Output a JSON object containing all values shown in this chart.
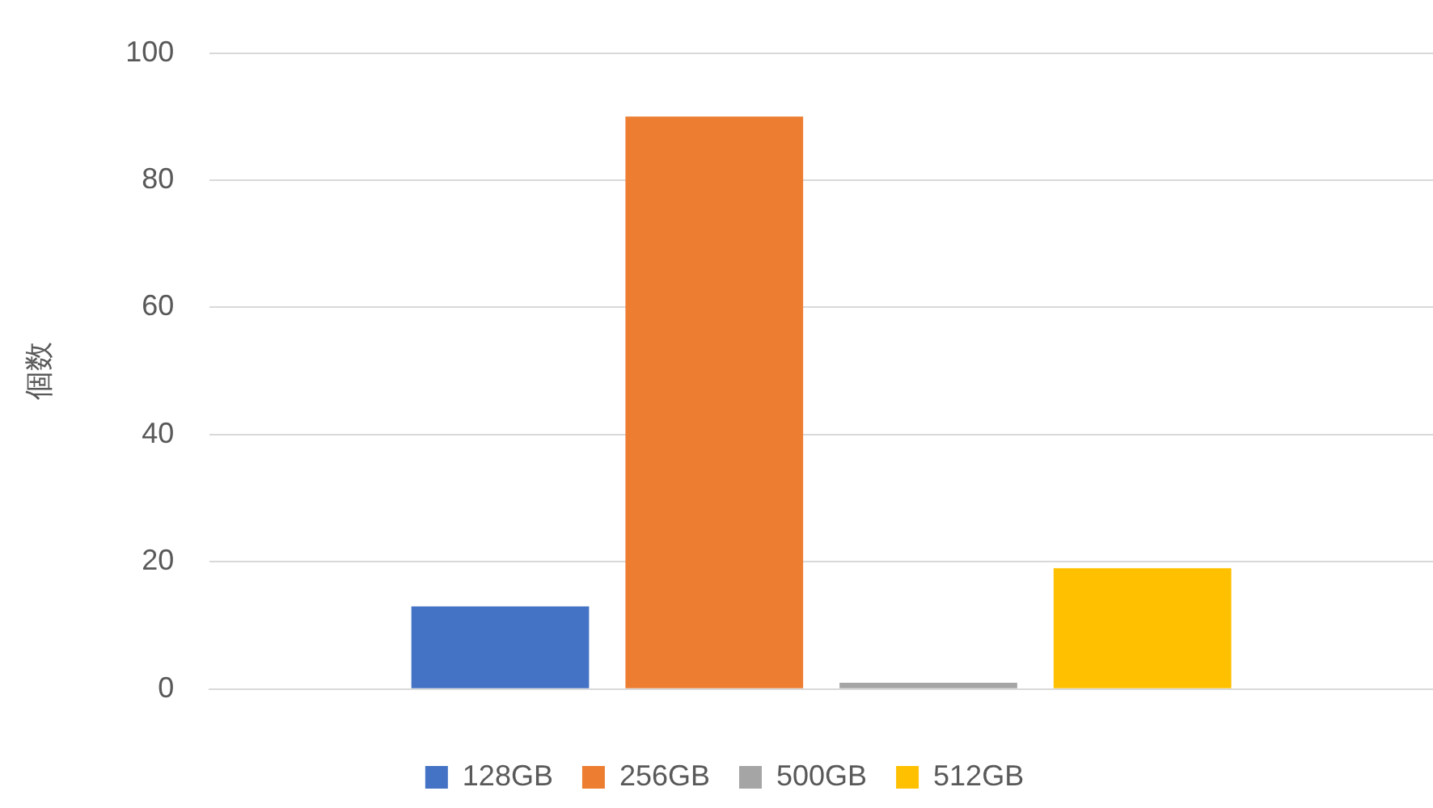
{
  "chart_data": {
    "type": "bar",
    "ylabel": "個数",
    "categories": [
      null
    ],
    "series": [
      {
        "name": "128GB",
        "color": "#4472c4",
        "values": [
          13
        ]
      },
      {
        "name": "256GB",
        "color": "#ed7d31",
        "values": [
          90
        ]
      },
      {
        "name": "500GB",
        "color": "#a5a5a5",
        "values": [
          1
        ]
      },
      {
        "name": "512GB",
        "color": "#ffc000",
        "values": [
          19
        ]
      }
    ],
    "ylim": [
      0,
      100
    ],
    "yticks": [
      0,
      20,
      40,
      60,
      80,
      100
    ],
    "grid": "y",
    "legend": "bottom"
  }
}
